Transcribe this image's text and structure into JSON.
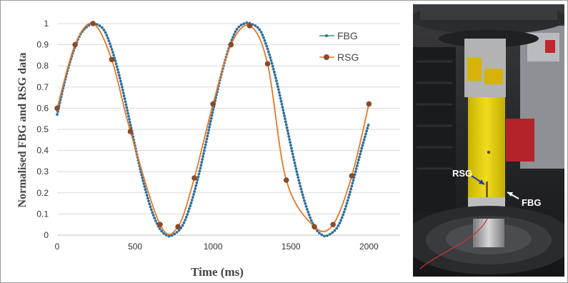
{
  "chart_data": {
    "type": "line",
    "xlabel": "Time (ms)",
    "ylabel": "Normalised FBG and RSG data",
    "xlim": [
      0,
      2200
    ],
    "ylim": [
      0,
      1
    ],
    "xticks": [
      0,
      500,
      1000,
      1500,
      2000
    ],
    "yticks": [
      0,
      0.1,
      0.2,
      0.3,
      0.4,
      0.5,
      0.6,
      0.7,
      0.8,
      0.9,
      1
    ],
    "grid": "horizontal",
    "legend_position": "top-right",
    "series": [
      {
        "name": "FBG",
        "style": "dense dotted line",
        "color": "#2e6fa0",
        "x": [
          0,
          50,
          100,
          150,
          200,
          240,
          300,
          350,
          400,
          450,
          500,
          550,
          600,
          650,
          700,
          740,
          800,
          850,
          900,
          950,
          1000,
          1050,
          1100,
          1150,
          1200,
          1240,
          1300,
          1350,
          1400,
          1450,
          1500,
          1550,
          1600,
          1650,
          1700,
          1740,
          1800,
          1850,
          1900,
          1950,
          2000
        ],
        "y": [
          0.57,
          0.73,
          0.86,
          0.95,
          0.99,
          1.0,
          0.97,
          0.88,
          0.75,
          0.59,
          0.42,
          0.26,
          0.13,
          0.04,
          0.0,
          0.0,
          0.04,
          0.13,
          0.26,
          0.42,
          0.59,
          0.75,
          0.88,
          0.97,
          1.0,
          1.0,
          0.97,
          0.88,
          0.75,
          0.59,
          0.42,
          0.26,
          0.13,
          0.04,
          0.0,
          0.0,
          0.04,
          0.13,
          0.26,
          0.4,
          0.53
        ]
      },
      {
        "name": "RSG",
        "style": "line with circle markers",
        "color": "#e87722",
        "marker_color": "#8b4a2a",
        "x": [
          0,
          115,
          230,
          350,
          470,
          660,
          775,
          880,
          1000,
          1115,
          1235,
          1350,
          1470,
          1650,
          1770,
          1890,
          2000
        ],
        "y": [
          0.6,
          0.9,
          1.0,
          0.83,
          0.49,
          0.05,
          0.04,
          0.27,
          0.62,
          0.9,
          0.99,
          0.81,
          0.26,
          0.04,
          0.05,
          0.28,
          0.62
        ]
      }
    ]
  },
  "photo": {
    "labels": {
      "rsg": "RSG",
      "fbg": "FBG"
    }
  }
}
